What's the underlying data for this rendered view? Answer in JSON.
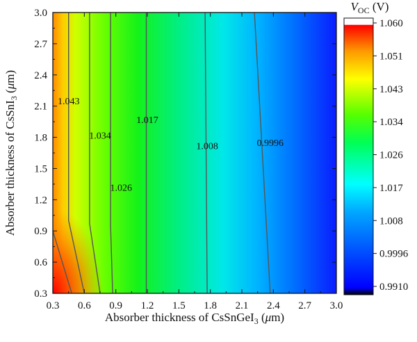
{
  "chart_data": {
    "type": "heatmap",
    "subtype": "filled-contour",
    "xlabel": {
      "prefix": "Absorber thickness of CsSnGeI",
      "sub": "3",
      "unit_open": " (",
      "unit_var": "μ",
      "unit_rest": "m)"
    },
    "ylabel": {
      "prefix": "Absorber thickness of CsSnI",
      "sub": "3",
      "unit_open": " (",
      "unit_var": "μ",
      "unit_rest": "m)"
    },
    "colorbar_title": {
      "var": "V",
      "sub": "OC",
      "rest": " (V)"
    },
    "xlim": [
      0.3,
      3.0
    ],
    "ylim": [
      0.3,
      3.0
    ],
    "xticks": [
      "0.3",
      "0.6",
      "0.9",
      "1.2",
      "1.5",
      "1.8",
      "2.1",
      "2.4",
      "2.7",
      "3.0"
    ],
    "yticks": [
      "0.3",
      "0.6",
      "0.9",
      "1.2",
      "1.5",
      "1.8",
      "2.1",
      "2.4",
      "2.7",
      "3.0"
    ],
    "colorbar_range": [
      0.991,
      1.06
    ],
    "colorbar_ticks": [
      "1.060",
      "1.051",
      "1.043",
      "1.034",
      "1.026",
      "1.017",
      "1.008",
      "0.9996",
      "0.9910"
    ],
    "colors": [
      "#000000",
      "#0000ff",
      "#00ffff",
      "#00ff00",
      "#ffff00",
      "#ff0000",
      "#ffffff"
    ],
    "contours": [
      {
        "level": 1.043,
        "label": "1.043",
        "label_at": [
          0.45,
          2.15
        ],
        "points": [
          [
            0.3,
            0.9
          ],
          [
            0.48,
            0.3
          ]
        ]
      },
      {
        "level": 1.034,
        "label": "1.034",
        "label_at": [
          0.75,
          1.82
        ],
        "points": [
          [
            0.45,
            3.0
          ],
          [
            0.45,
            1.0
          ],
          [
            0.6,
            0.3
          ]
        ]
      },
      {
        "level": 1.026,
        "label": "1.026",
        "label_at": [
          0.95,
          1.32
        ],
        "points": [
          [
            0.65,
            3.0
          ],
          [
            0.65,
            0.97
          ],
          [
            0.75,
            0.3
          ]
        ]
      },
      {
        "level": 1.017,
        "label": "1.017",
        "label_at": [
          1.2,
          1.97
        ],
        "points": [
          [
            0.85,
            3.0
          ],
          [
            0.85,
            0.95
          ],
          [
            0.87,
            0.3
          ]
        ]
      },
      {
        "level": 1.008,
        "label": "1.008",
        "label_at": [
          1.77,
          1.72
        ],
        "points": [
          [
            1.19,
            3.0
          ],
          [
            1.19,
            0.3
          ]
        ]
      },
      {
        "level": 0.9996,
        "label": "0.9996",
        "label_at": [
          2.37,
          1.75
        ],
        "points": [
          [
            1.75,
            3.0
          ],
          [
            1.77,
            0.3
          ]
        ]
      },
      {
        "level": 0.991,
        "label": "",
        "label_at": null,
        "points": [
          [
            2.22,
            3.0
          ],
          [
            2.37,
            0.3
          ]
        ]
      }
    ]
  }
}
